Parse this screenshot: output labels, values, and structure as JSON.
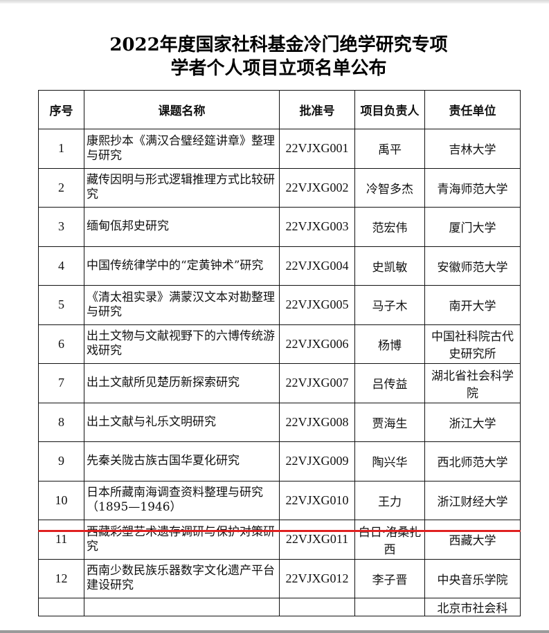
{
  "title_line1": "2022年度国家社科基金冷门绝学研究专项",
  "title_line2": "学者个人项目立项名单公布",
  "headers": [
    "序号",
    "课题名称",
    "批准号",
    "项目负责人",
    "责任单位"
  ],
  "rows": [
    {
      "no": "1",
      "title": "康熙抄本《满汉合璧经筵讲章》整理与研究",
      "code": "22VJXG001",
      "leader": "禹平",
      "unit": "吉林大学"
    },
    {
      "no": "2",
      "title": "藏传因明与形式逻辑推理方式比较研究",
      "code": "22VJXG002",
      "leader": "冷智多杰",
      "unit": "青海师范大学"
    },
    {
      "no": "3",
      "title": "缅甸佤邦史研究",
      "code": "22VJXG003",
      "leader": "范宏伟",
      "unit": "厦门大学"
    },
    {
      "no": "4",
      "title": "中国传统律学中的“定黄钟术”研究",
      "code": "22VJXG004",
      "leader": "史凯敏",
      "unit": "安徽师范大学"
    },
    {
      "no": "5",
      "title": "《清太祖实录》满蒙汉文本对勘整理与研究",
      "code": "22VJXG005",
      "leader": "马子木",
      "unit": "南开大学"
    },
    {
      "no": "6",
      "title": "出土文物与文献视野下的六博传统游戏研究",
      "code": "22VJXG006",
      "leader": "杨博",
      "unit": "中国社科院古代史研究所"
    },
    {
      "no": "7",
      "title": "出土文献所见楚历新探索研究",
      "code": "22VJXG007",
      "leader": "吕传益",
      "unit": "湖北省社会科学院"
    },
    {
      "no": "8",
      "title": "出土文献与礼乐文明研究",
      "code": "22VJXG008",
      "leader": "贾海生",
      "unit": "浙江大学"
    },
    {
      "no": "9",
      "title": "先秦关陇古族古国华夏化研究",
      "code": "22VJXG009",
      "leader": "陶兴华",
      "unit": "西北师范大学"
    },
    {
      "no": "10",
      "title": "日本所藏南海调查资料整理与研究（1895—1946）",
      "code": "22VJXG010",
      "leader": "王力",
      "unit": "浙江财经大学"
    },
    {
      "no": "11",
      "title": "西藏彩塑艺术遗存调研与保护对策研究",
      "code": "22VJXG011",
      "leader": "白日·洛桑扎西",
      "unit": "西藏大学"
    },
    {
      "no": "12",
      "title": "西南少数民族乐器数字文化遗产平台建设研究",
      "code": "22VJXG012",
      "leader": "李子晋",
      "unit": "中央音乐学院"
    }
  ],
  "partial_row_unit": "北京市社会科",
  "highlight_color": "#e02020"
}
